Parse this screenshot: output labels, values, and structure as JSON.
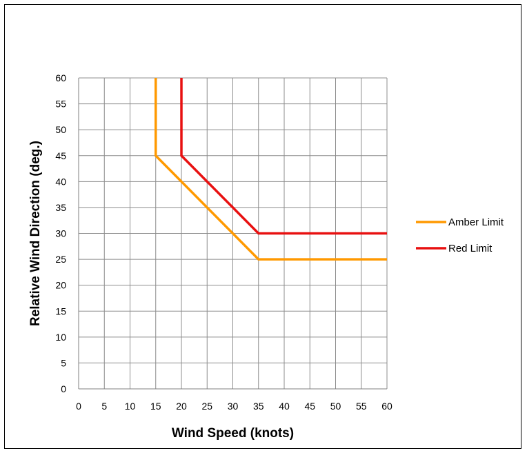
{
  "chart_data": {
    "type": "line",
    "title": "",
    "xlabel": "Wind Speed (knots)",
    "ylabel": "Relative Wind Direction (deg.)",
    "xlim": [
      0,
      60
    ],
    "ylim": [
      0,
      60
    ],
    "xticks": [
      "0",
      "5",
      "10",
      "15",
      "20",
      "25",
      "30",
      "35",
      "40",
      "45",
      "50",
      "55",
      "60"
    ],
    "yticks": [
      "0",
      "5",
      "10",
      "15",
      "20",
      "25",
      "30",
      "35",
      "40",
      "45",
      "50",
      "55",
      "60"
    ],
    "grid": true,
    "legend_position": "right",
    "series": [
      {
        "name": "Amber Limit",
        "color": "#ff9900",
        "points": [
          [
            15,
            60
          ],
          [
            15,
            45
          ],
          [
            35,
            25
          ],
          [
            60,
            25
          ]
        ]
      },
      {
        "name": "Red Limit",
        "color": "#e81010",
        "points": [
          [
            20,
            60
          ],
          [
            20,
            45
          ],
          [
            35,
            30
          ],
          [
            60,
            30
          ]
        ]
      }
    ]
  }
}
